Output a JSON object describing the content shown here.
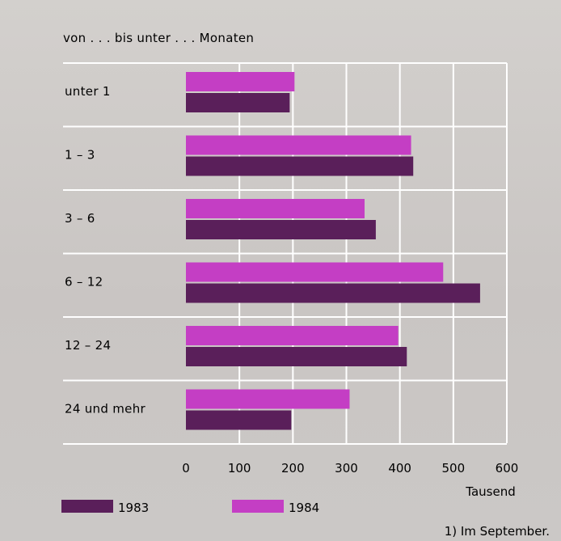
{
  "chart_data": {
    "type": "bar",
    "orientation": "horizontal",
    "header": "von . . . bis unter . . . Monaten",
    "categories": [
      "unter 1",
      "1 – 3",
      "3 – 6",
      "6 – 12",
      "12 – 24",
      "24 und mehr"
    ],
    "series": [
      {
        "name": "1984",
        "color": "#c43ec4",
        "values": [
          203,
          421,
          334,
          481,
          397,
          306
        ]
      },
      {
        "name": "1983",
        "color": "#5a1f5a",
        "values": [
          194,
          425,
          355,
          550,
          413,
          197
        ]
      }
    ],
    "xlim": [
      0,
      600
    ],
    "xticks": [
      "0",
      "100",
      "200",
      "300",
      "400",
      "500",
      "600"
    ],
    "xunit": "Tausend",
    "grid": true,
    "legend_position": "bottom",
    "footnote": "1) Im September."
  }
}
